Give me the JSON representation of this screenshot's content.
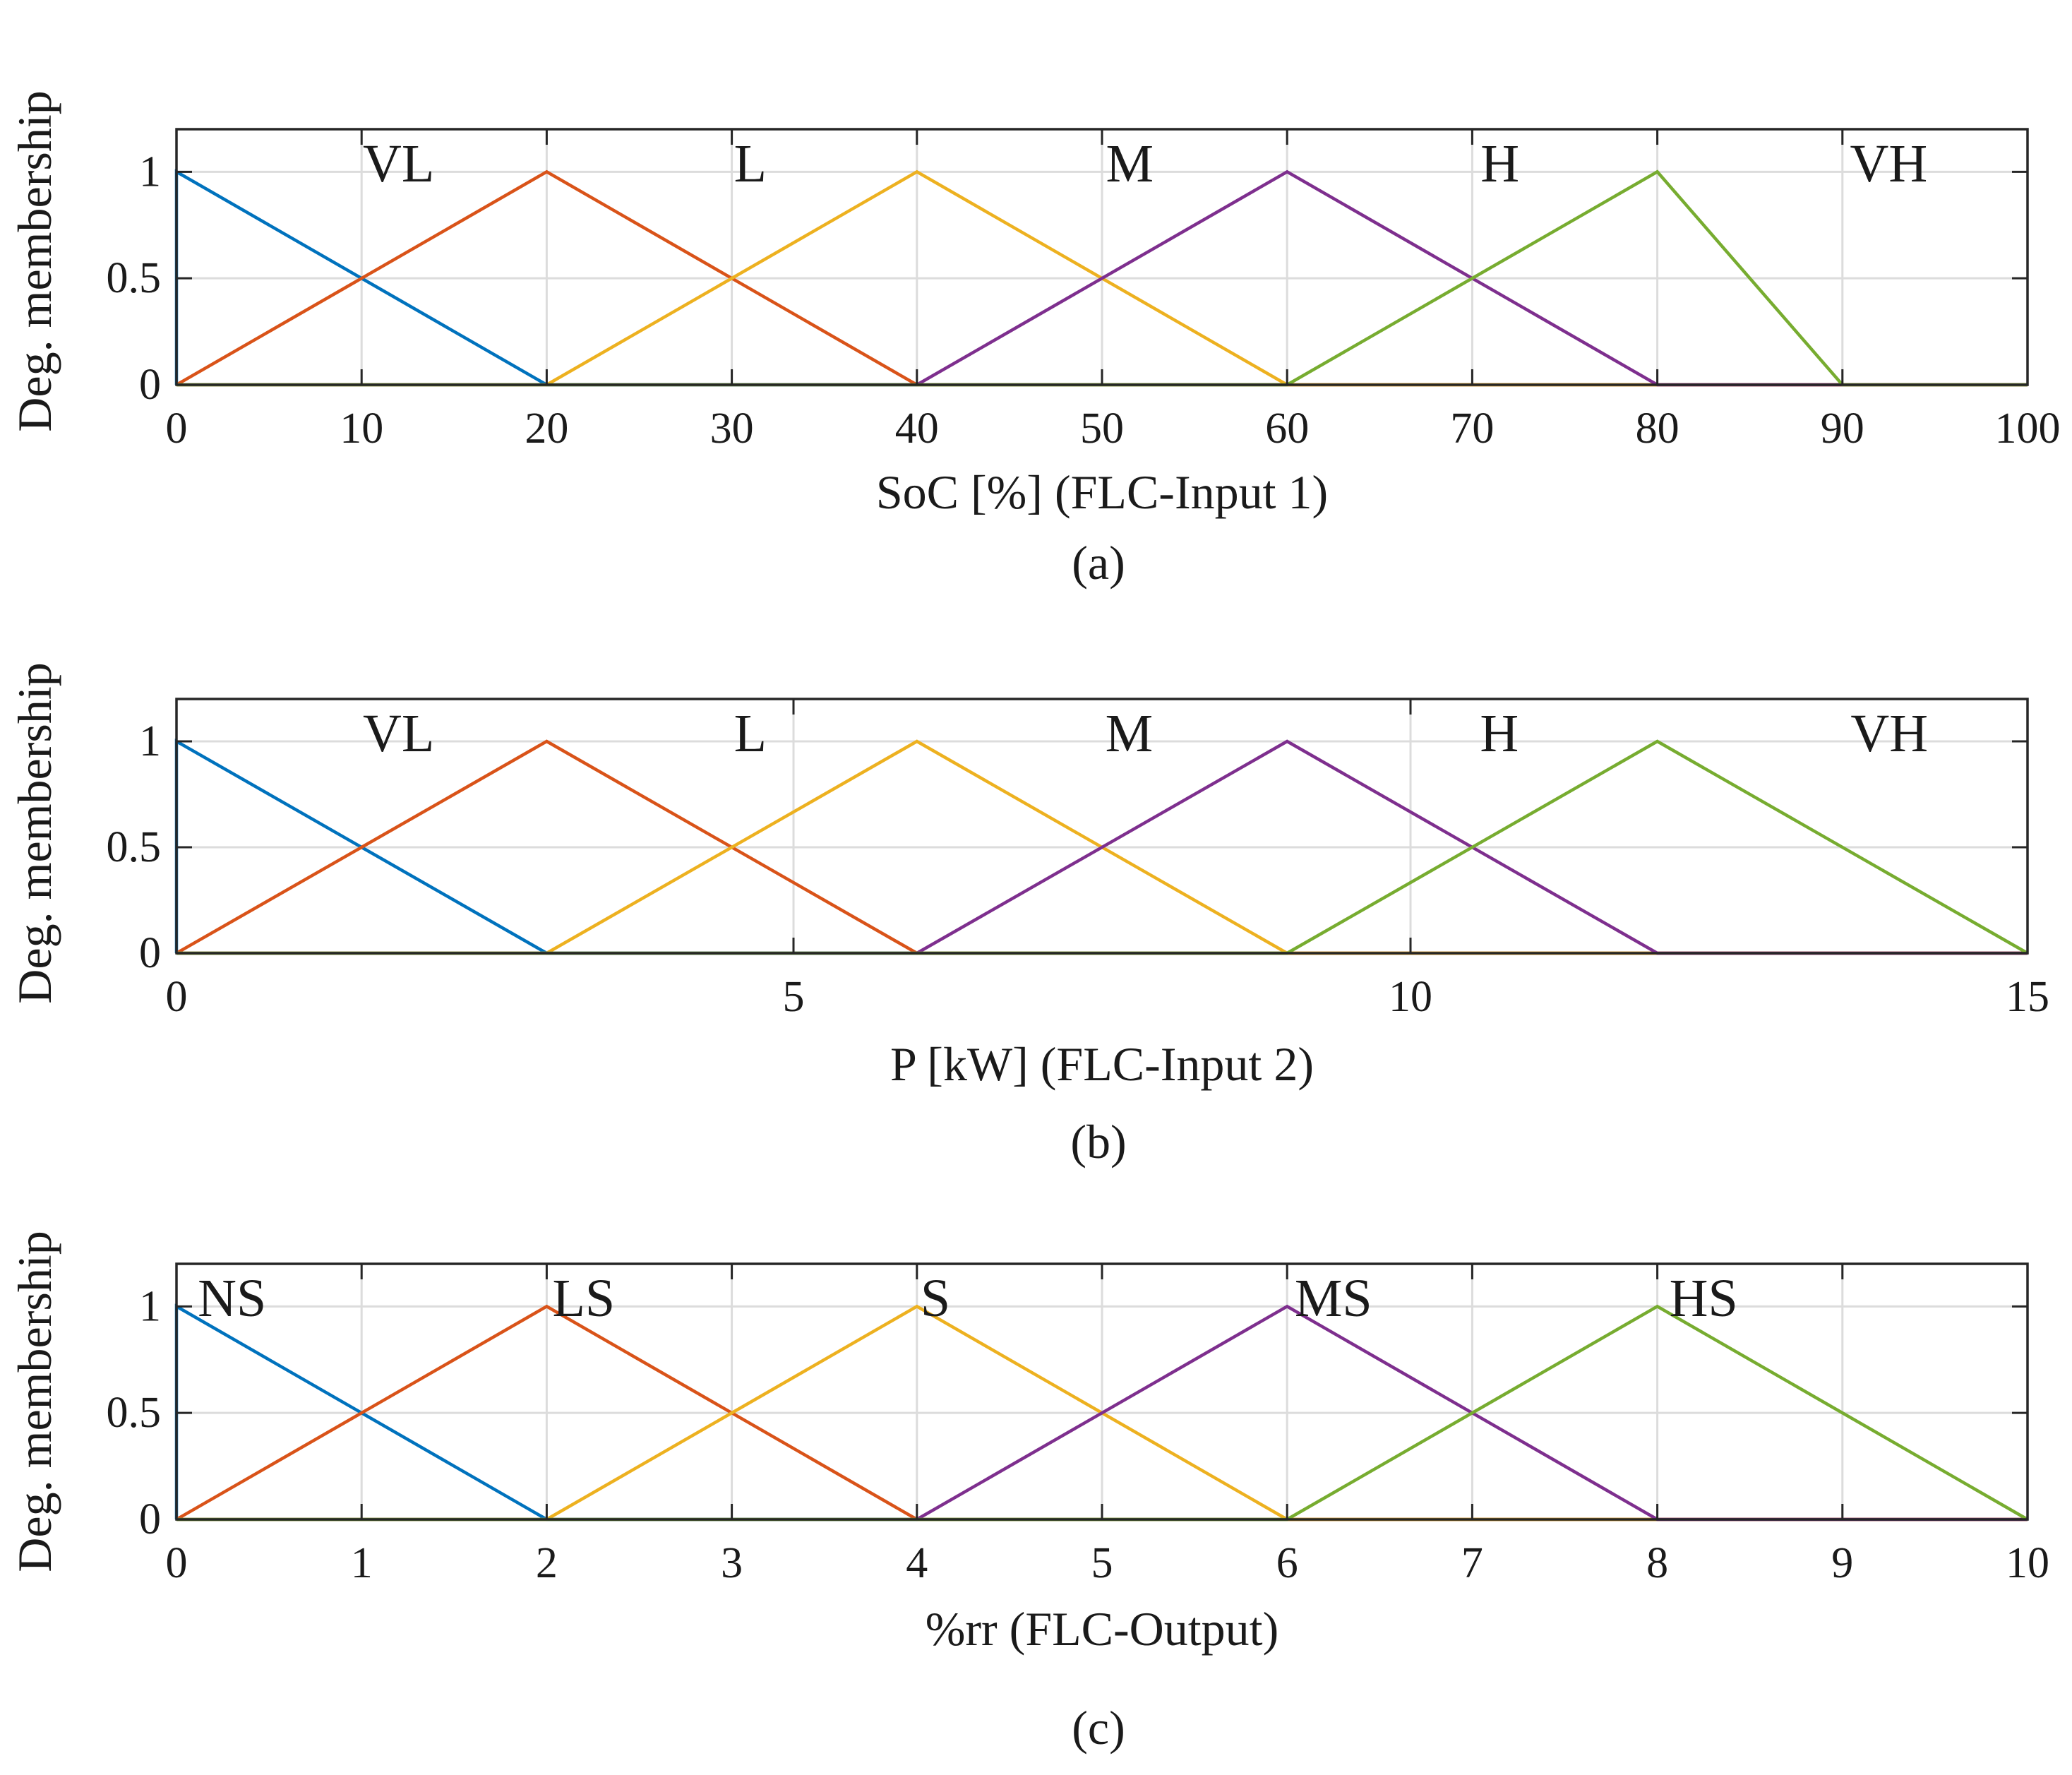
{
  "chart_data": [
    {
      "type": "line",
      "chart_kind": "fuzzy membership functions",
      "xlabel": "SoC  [%] (FLC-Input 1)",
      "ylabel": "Deg. membership",
      "caption": "(a)",
      "xlim": [
        0,
        100
      ],
      "ylim": [
        0,
        1.2
      ],
      "xticks": [
        0,
        10,
        20,
        30,
        40,
        50,
        60,
        70,
        80,
        90,
        100
      ],
      "yticks": [
        0,
        0.5,
        1
      ],
      "grid": true,
      "series": [
        {
          "name": "VL",
          "color": "#0072BD",
          "x": [
            0,
            0,
            20,
            100
          ],
          "y": [
            0,
            1,
            0,
            0
          ],
          "label_x": 12
        },
        {
          "name": "L",
          "color": "#D95319",
          "x": [
            0,
            20,
            40,
            100
          ],
          "y": [
            0,
            1,
            0,
            0
          ],
          "label_x": 31
        },
        {
          "name": "M",
          "color": "#EDB120",
          "x": [
            0,
            20,
            40,
            60,
            100
          ],
          "y": [
            0,
            0,
            1,
            0,
            0
          ],
          "label_x": 51.5
        },
        {
          "name": "H",
          "color": "#7E2F8E",
          "x": [
            0,
            40,
            60,
            80,
            100
          ],
          "y": [
            0,
            0,
            1,
            0,
            0
          ],
          "label_x": 71.5
        },
        {
          "name": "VH",
          "color": "#77AC30",
          "x": [
            0,
            60,
            80,
            90,
            100
          ],
          "y": [
            0,
            0,
            1,
            0,
            0
          ],
          "label_x": 92.5
        }
      ]
    },
    {
      "type": "line",
      "chart_kind": "fuzzy membership functions",
      "xlabel": "P  [kW] (FLC-Input 2)",
      "ylabel": "Deg. membership",
      "caption": "(b)",
      "xlim": [
        0,
        15
      ],
      "ylim": [
        0,
        1.2
      ],
      "xticks": [
        0,
        5,
        10,
        15
      ],
      "yticks": [
        0,
        0.5,
        1
      ],
      "grid": true,
      "series": [
        {
          "name": "VL",
          "color": "#0072BD",
          "x": [
            0,
            0,
            3,
            15
          ],
          "y": [
            0,
            1,
            0,
            0
          ],
          "label_x": 1.8
        },
        {
          "name": "L",
          "color": "#D95319",
          "x": [
            0,
            3,
            6,
            15
          ],
          "y": [
            0,
            1,
            0,
            0
          ],
          "label_x": 4.65
        },
        {
          "name": "M",
          "color": "#EDB120",
          "x": [
            0,
            3,
            6,
            9,
            15
          ],
          "y": [
            0,
            0,
            1,
            0,
            0
          ],
          "label_x": 7.72
        },
        {
          "name": "H",
          "color": "#7E2F8E",
          "x": [
            0,
            6,
            9,
            12,
            15
          ],
          "y": [
            0,
            0,
            1,
            0,
            0
          ],
          "label_x": 10.72
        },
        {
          "name": "VH",
          "color": "#77AC30",
          "x": [
            0,
            9,
            12,
            15
          ],
          "y": [
            0,
            0,
            1,
            0
          ],
          "label_x": 13.88
        }
      ]
    },
    {
      "type": "line",
      "chart_kind": "fuzzy membership functions",
      "xlabel": "%rr (FLC-Output)",
      "ylabel": "Deg. membership",
      "caption": "(c)",
      "xlim": [
        0,
        10
      ],
      "ylim": [
        0,
        1.2
      ],
      "xticks": [
        0,
        1,
        2,
        3,
        4,
        5,
        6,
        7,
        8,
        9,
        10
      ],
      "yticks": [
        0,
        0.5,
        1
      ],
      "grid": true,
      "series": [
        {
          "name": "NS",
          "color": "#0072BD",
          "x": [
            0,
            0,
            2,
            10
          ],
          "y": [
            0,
            1,
            0,
            0
          ],
          "label_x": 0.3
        },
        {
          "name": "LS",
          "color": "#D95319",
          "x": [
            0,
            2,
            4,
            10
          ],
          "y": [
            0,
            1,
            0,
            0
          ],
          "label_x": 2.2
        },
        {
          "name": "S",
          "color": "#EDB120",
          "x": [
            0,
            2,
            4,
            6,
            10
          ],
          "y": [
            0,
            0,
            1,
            0,
            0
          ],
          "label_x": 4.1
        },
        {
          "name": "MS",
          "color": "#7E2F8E",
          "x": [
            0,
            4,
            6,
            8,
            10
          ],
          "y": [
            0,
            0,
            1,
            0,
            0
          ],
          "label_x": 6.25
        },
        {
          "name": "HS",
          "color": "#77AC30",
          "x": [
            0,
            6,
            8,
            10
          ],
          "y": [
            0,
            0,
            1,
            0
          ],
          "label_x": 8.25
        }
      ]
    }
  ]
}
